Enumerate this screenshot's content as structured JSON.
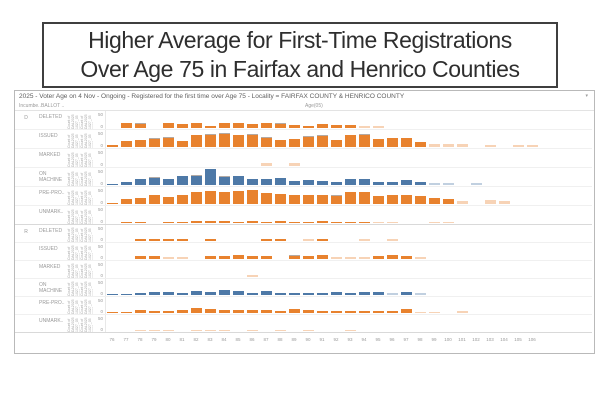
{
  "title": {
    "line1": "Higher Average for First-Time Registrations",
    "line2": "Over Age 75 in Fairfax and Henrico Counties"
  },
  "panel": {
    "header": "2025 - Voter Age on 4 Nov - Ongoing - Registered for the first time over Age 75 - Locality =  FAIRFAX COUNTY & HENRICO COUNTY",
    "caret": "▾",
    "col1": "Incumbe..",
    "col2": "BALLOT ..",
    "age_label": "Age(05)",
    "y_tick_top": "50",
    "y_tick_bottom": "0",
    "measure_label": "Count of DAL2025 1027_05 0001.."
  },
  "colors": {
    "orange": "#e8822e",
    "blue": "#4e79a7",
    "cap_gray": "#b3aaa4",
    "axis_text": "#9a9a9a"
  },
  "chart_data": {
    "type": "bar",
    "title": "2025 - Voter Age on 4 Nov - Ongoing - Registered for the first time over Age 75",
    "xlabel": "Age(05)",
    "ylabel": "Count of DAL2025 1027_05 0001..",
    "x": [
      76,
      77,
      78,
      79,
      80,
      81,
      82,
      83,
      84,
      85,
      86,
      87,
      88,
      89,
      90,
      91,
      92,
      93,
      94,
      95,
      96,
      97,
      98,
      99,
      100,
      101,
      102,
      103,
      104,
      105,
      106
    ],
    "row_axis": {
      "ticks": [
        50,
        0
      ],
      "approx_max": 85
    },
    "legend_position": "none",
    "grid": "light-horizontal",
    "groups": [
      {
        "incumbent": "D",
        "rows": [
          {
            "label": "DELETED",
            "color": "orange",
            "values": [
              0,
              25,
              18,
              0,
              22,
              18,
              25,
              10,
              25,
              25,
              18,
              25,
              18,
              12,
              10,
              18,
              15,
              12,
              10,
              8,
              0,
              0,
              0,
              0,
              0,
              0,
              0,
              0,
              0,
              0,
              0
            ],
            "caps": [
              0,
              0,
              4,
              0,
              0,
              0,
              0,
              0,
              0,
              0,
              0,
              0,
              4,
              0,
              0,
              0,
              0,
              0,
              0,
              0,
              0,
              0,
              0,
              0,
              0,
              0,
              0,
              0,
              0,
              0,
              0
            ],
            "dim": [
              18,
              19
            ]
          },
          {
            "label": "ISSUED",
            "color": "orange",
            "values": [
              8,
              30,
              32,
              38,
              42,
              30,
              55,
              58,
              62,
              55,
              55,
              45,
              35,
              38,
              50,
              52,
              35,
              55,
              58,
              40,
              45,
              42,
              22,
              15,
              15,
              12,
              0,
              10,
              0,
              8,
              8
            ],
            "caps": [
              0,
              0,
              0,
              4,
              4,
              0,
              0,
              4,
              4,
              0,
              6,
              4,
              0,
              0,
              4,
              4,
              0,
              0,
              6,
              0,
              0,
              0,
              0,
              0,
              0,
              0,
              0,
              0,
              0,
              0,
              0
            ],
            "dim": [
              23,
              24,
              25,
              27,
              29,
              30
            ]
          },
          {
            "label": "MARKED",
            "color": "orange",
            "values": [
              0,
              0,
              0,
              0,
              0,
              0,
              0,
              0,
              0,
              0,
              0,
              12,
              0,
              14,
              0,
              0,
              0,
              0,
              0,
              0,
              0,
              0,
              0,
              0,
              0,
              0,
              0,
              0,
              0,
              0,
              0
            ],
            "caps": [
              0,
              0,
              0,
              0,
              0,
              0,
              0,
              0,
              0,
              0,
              0,
              0,
              0,
              0,
              0,
              0,
              0,
              0,
              0,
              0,
              0,
              0,
              0,
              0,
              0,
              0,
              0,
              0,
              0,
              0,
              0
            ],
            "dim": [
              11,
              13
            ]
          },
          {
            "label": "ON MACHINE",
            "color": "blue",
            "values": [
              5,
              15,
              28,
              35,
              30,
              42,
              45,
              75,
              38,
              42,
              30,
              28,
              32,
              20,
              25,
              18,
              15,
              28,
              30,
              15,
              12,
              22,
              12,
              8,
              8,
              0,
              8,
              0,
              0,
              0,
              0
            ],
            "caps": [
              0,
              0,
              0,
              3,
              0,
              0,
              3,
              0,
              3,
              0,
              0,
              0,
              0,
              0,
              0,
              0,
              0,
              0,
              0,
              0,
              0,
              0,
              0,
              0,
              0,
              0,
              0,
              0,
              0,
              0,
              0
            ],
            "dim": [
              23,
              24,
              26
            ]
          },
          {
            "label": "PRE-PRO..",
            "color": "orange",
            "values": [
              5,
              25,
              30,
              45,
              35,
              45,
              58,
              60,
              55,
              62,
              65,
              52,
              48,
              42,
              45,
              45,
              38,
              55,
              55,
              40,
              42,
              45,
              38,
              30,
              25,
              15,
              0,
              18,
              12,
              0,
              0
            ],
            "caps": [
              0,
              0,
              0,
              0,
              0,
              0,
              0,
              0,
              0,
              0,
              0,
              0,
              0,
              0,
              0,
              0,
              4,
              0,
              0,
              0,
              0,
              0,
              0,
              0,
              0,
              0,
              0,
              0,
              0,
              0,
              0
            ],
            "dim": [
              25,
              27,
              28
            ]
          },
          {
            "label": "UNMARK..",
            "color": "orange",
            "values": [
              0,
              6,
              6,
              0,
              6,
              6,
              8,
              8,
              8,
              6,
              8,
              6,
              8,
              6,
              6,
              8,
              6,
              6,
              6,
              6,
              6,
              0,
              0,
              6,
              6,
              0,
              0,
              0,
              0,
              0,
              0
            ],
            "caps": [
              0,
              0,
              0,
              0,
              0,
              0,
              0,
              0,
              0,
              0,
              0,
              0,
              0,
              0,
              0,
              0,
              0,
              0,
              0,
              0,
              0,
              0,
              0,
              0,
              0,
              0,
              0,
              0,
              0,
              0,
              0
            ],
            "dim": [
              19,
              20,
              23,
              24
            ]
          }
        ]
      },
      {
        "incumbent": "R",
        "rows": [
          {
            "label": "DELETED",
            "color": "orange",
            "values": [
              0,
              0,
              8,
              8,
              8,
              8,
              0,
              10,
              0,
              0,
              0,
              8,
              8,
              0,
              8,
              8,
              0,
              0,
              8,
              0,
              8,
              0,
              0,
              0,
              0,
              0,
              0,
              0,
              0,
              0,
              0
            ],
            "caps": [
              0,
              0,
              0,
              0,
              0,
              0,
              0,
              0,
              0,
              0,
              0,
              0,
              0,
              0,
              0,
              0,
              0,
              0,
              0,
              0,
              0,
              0,
              0,
              0,
              0,
              0,
              0,
              0,
              0,
              0,
              0
            ],
            "dim": [
              14,
              18,
              20
            ]
          },
          {
            "label": "ISSUED",
            "color": "orange",
            "values": [
              0,
              0,
              15,
              15,
              8,
              8,
              0,
              15,
              12,
              20,
              15,
              15,
              0,
              12,
              12,
              18,
              8,
              8,
              8,
              12,
              20,
              12,
              8,
              0,
              0,
              0,
              0,
              0,
              0,
              0,
              0
            ],
            "caps": [
              0,
              0,
              0,
              0,
              0,
              0,
              0,
              0,
              0,
              0,
              0,
              0,
              0,
              4,
              0,
              0,
              0,
              0,
              0,
              0,
              0,
              0,
              0,
              0,
              0,
              0,
              0,
              0,
              0,
              0,
              0
            ],
            "dim": [
              4,
              5,
              16,
              17,
              18,
              22
            ]
          },
          {
            "label": "MARKED",
            "color": "orange",
            "values": [
              0,
              0,
              0,
              0,
              0,
              0,
              0,
              0,
              0,
              0,
              8,
              0,
              0,
              0,
              0,
              0,
              0,
              0,
              0,
              0,
              0,
              0,
              0,
              0,
              0,
              0,
              0,
              0,
              0,
              0,
              0
            ],
            "caps": [
              0,
              0,
              0,
              0,
              0,
              0,
              0,
              0,
              0,
              0,
              0,
              0,
              0,
              0,
              0,
              0,
              0,
              0,
              0,
              0,
              0,
              0,
              0,
              0,
              0,
              0,
              0,
              0,
              0,
              0,
              0
            ],
            "dim": [
              10
            ]
          },
          {
            "label": "ON MACHINE",
            "color": "blue",
            "values": [
              3,
              5,
              10,
              12,
              15,
              10,
              18,
              12,
              25,
              18,
              10,
              18,
              8,
              8,
              10,
              10,
              12,
              10,
              15,
              12,
              8,
              15,
              8,
              0,
              0,
              0,
              0,
              0,
              0,
              0,
              0
            ],
            "caps": [
              0,
              0,
              0,
              0,
              0,
              0,
              0,
              0,
              0,
              0,
              0,
              0,
              0,
              0,
              0,
              0,
              0,
              0,
              0,
              0,
              0,
              0,
              0,
              0,
              0,
              0,
              0,
              0,
              0,
              0,
              0
            ],
            "dim": [
              20,
              22
            ]
          },
          {
            "label": "PRE-PRO..",
            "color": "orange",
            "values": [
              3,
              5,
              12,
              10,
              8,
              15,
              22,
              18,
              12,
              15,
              12,
              12,
              8,
              18,
              12,
              10,
              8,
              8,
              8,
              10,
              10,
              18,
              5,
              5,
              0,
              8,
              0,
              0,
              0,
              0,
              0
            ],
            "caps": [
              0,
              0,
              0,
              0,
              0,
              0,
              0,
              0,
              0,
              0,
              0,
              0,
              0,
              0,
              0,
              0,
              0,
              0,
              0,
              0,
              0,
              0,
              0,
              0,
              0,
              0,
              0,
              0,
              0,
              0,
              0
            ],
            "dim": [
              22,
              23,
              25
            ]
          },
          {
            "label": "UNMARK..",
            "color": "orange",
            "values": [
              0,
              0,
              4,
              4,
              4,
              0,
              5,
              5,
              4,
              0,
              4,
              0,
              4,
              0,
              4,
              0,
              0,
              4,
              0,
              0,
              0,
              0,
              0,
              0,
              0,
              0,
              0,
              0,
              0,
              0,
              0
            ],
            "caps": [
              0,
              0,
              0,
              0,
              0,
              0,
              0,
              0,
              0,
              0,
              0,
              0,
              0,
              0,
              0,
              0,
              0,
              0,
              0,
              0,
              0,
              0,
              0,
              0,
              0,
              0,
              0,
              0,
              0,
              0,
              0
            ],
            "dim": [
              2,
              3,
              4,
              6,
              7,
              8,
              10,
              12,
              14,
              17
            ]
          }
        ]
      }
    ]
  }
}
